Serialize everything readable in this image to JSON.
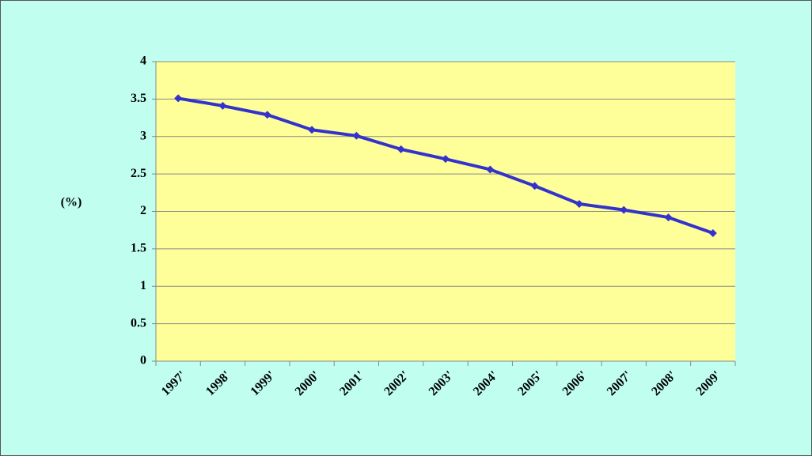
{
  "chart_data": {
    "type": "line",
    "y_label": "(%)",
    "categories": [
      "1997'",
      "1998'",
      "1999'",
      "2000'",
      "2001'",
      "2002'",
      "2003'",
      "2004'",
      "2005'",
      "2006'",
      "2007'",
      "2008'",
      "2009'"
    ],
    "series": [
      {
        "color": "#3333cc",
        "values": [
          3.51,
          3.41,
          3.29,
          3.09,
          3.01,
          2.83,
          2.7,
          2.56,
          2.34,
          2.1,
          2.02,
          1.92,
          1.71
        ]
      }
    ],
    "ylim": [
      0,
      4
    ],
    "yticks": [
      0,
      0.5,
      1,
      1.5,
      2,
      2.5,
      3,
      3.5,
      4
    ],
    "grid": true
  }
}
